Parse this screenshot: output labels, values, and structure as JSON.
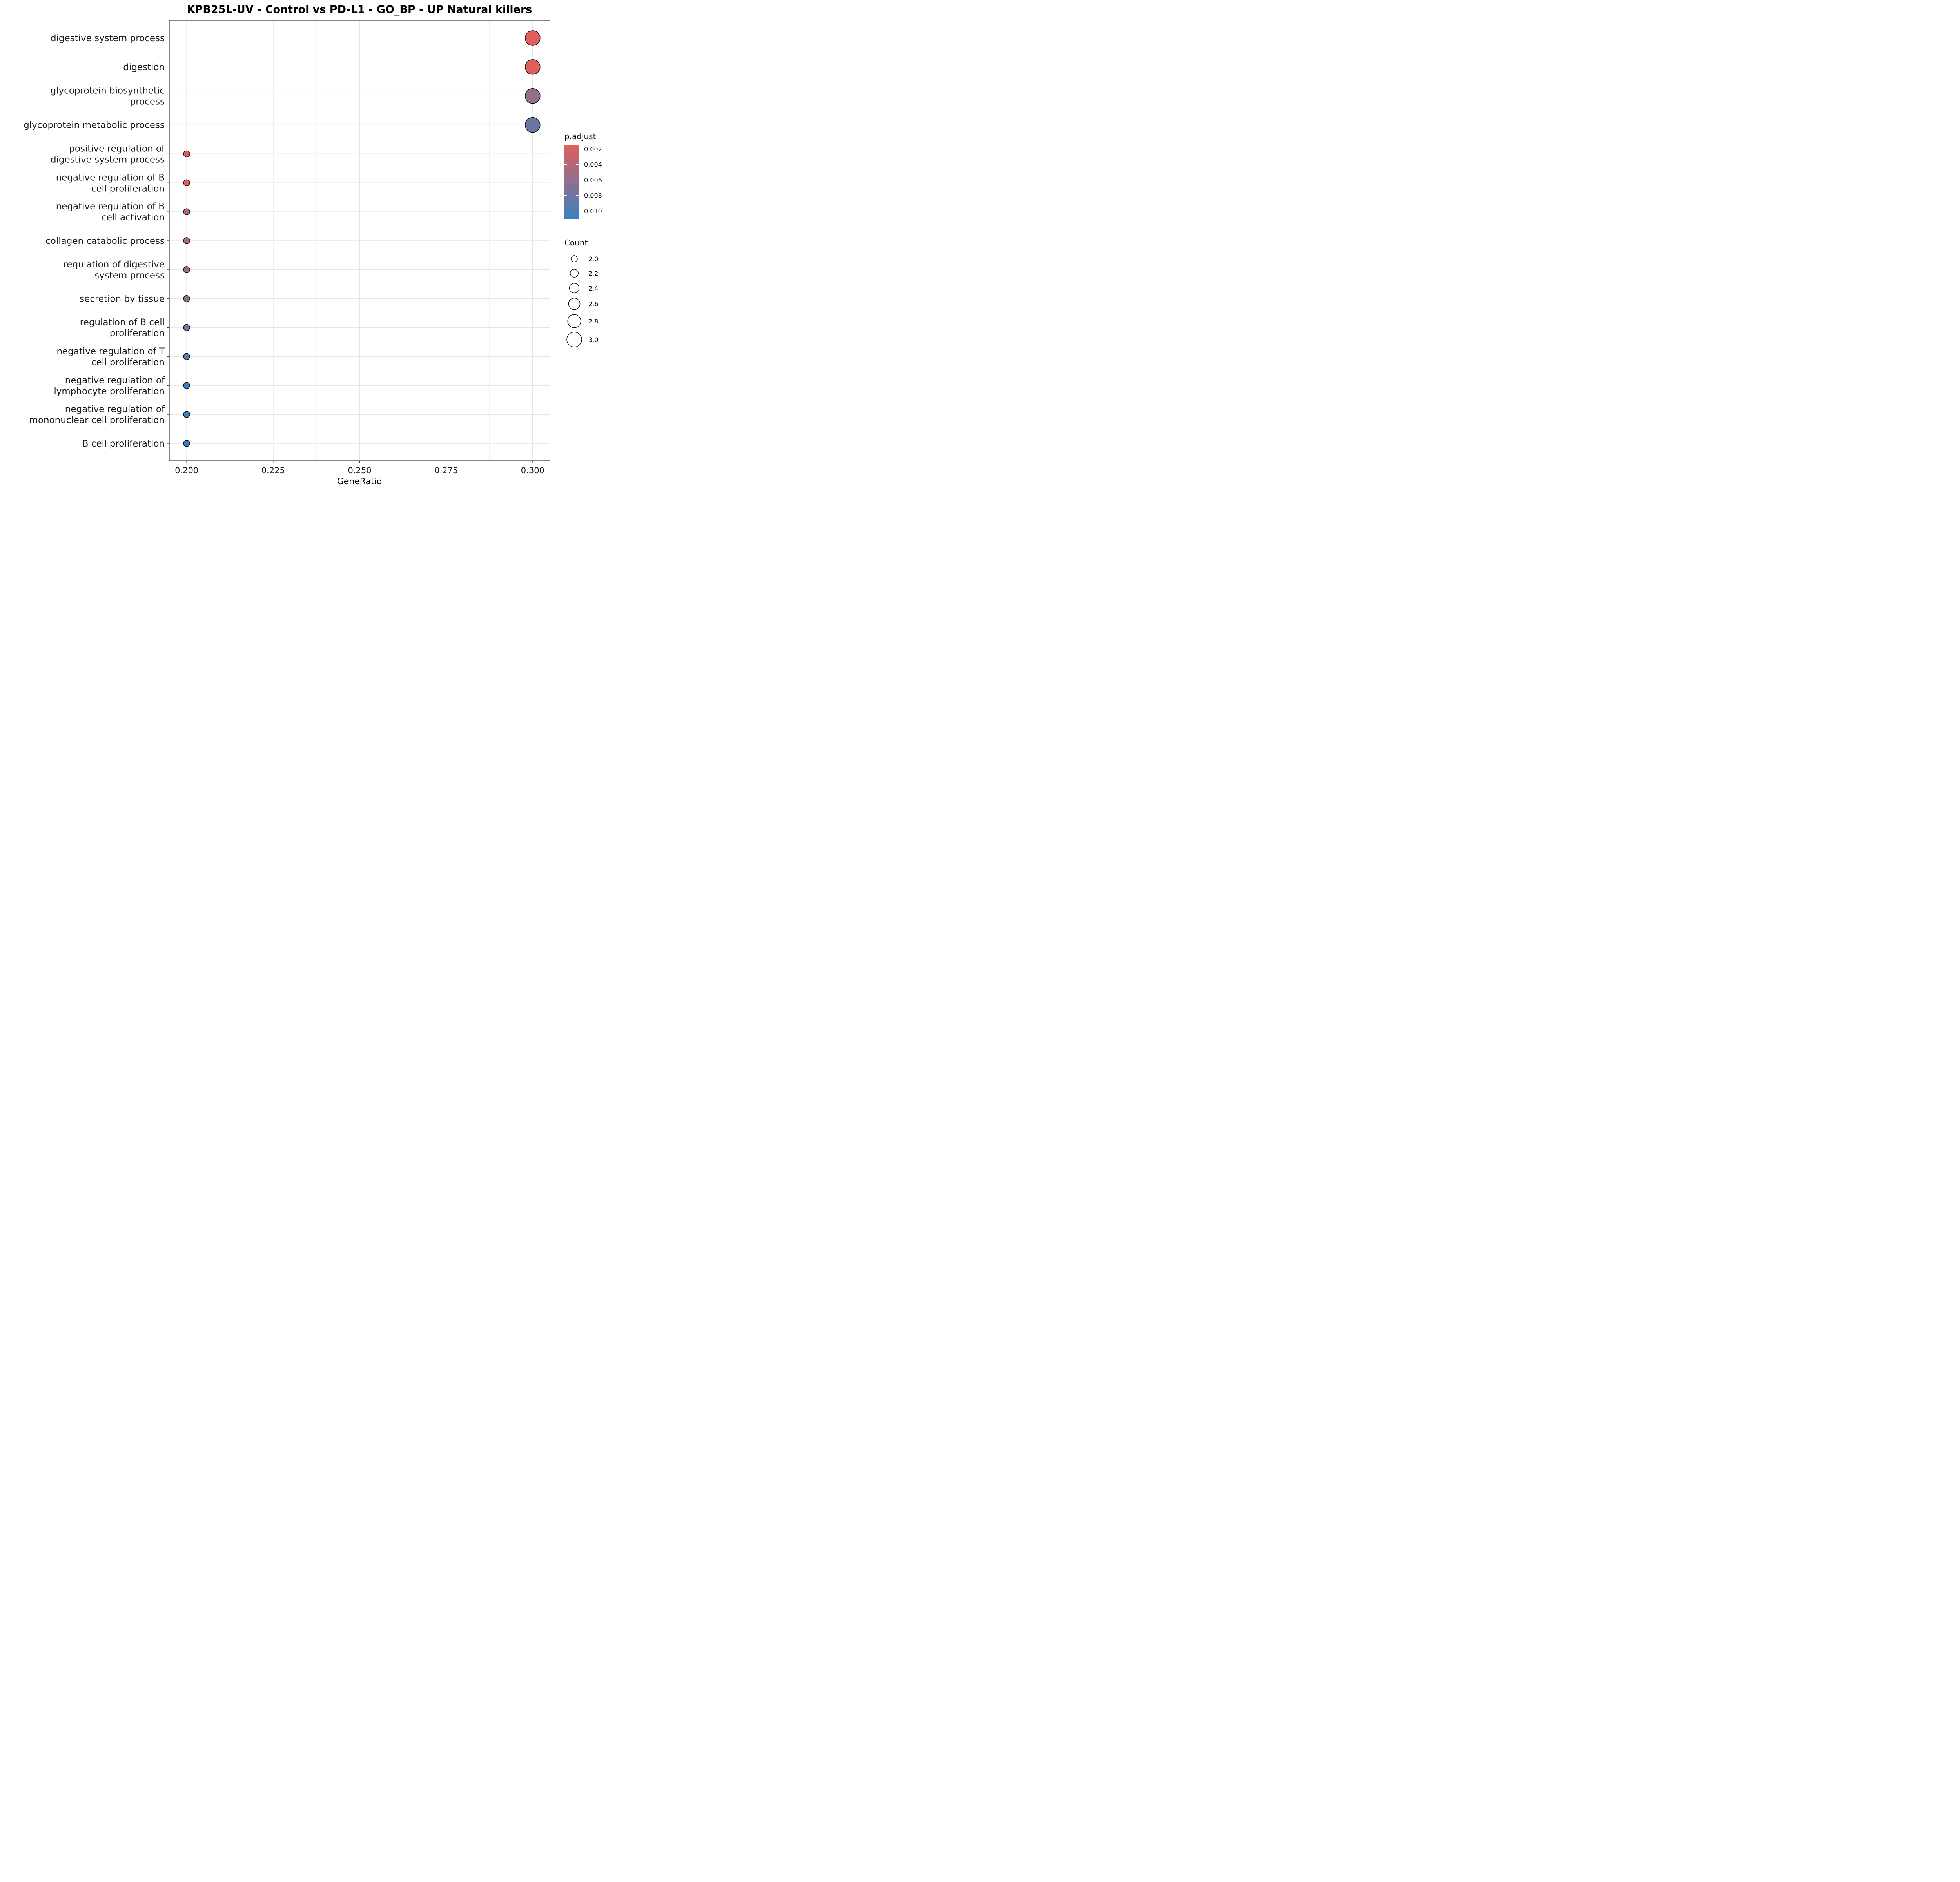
{
  "chart_data": {
    "type": "scatter",
    "title": "KPB25L-UV - Control vs PD-L1 - GO_BP - UP Natural killers",
    "xlabel": "GeneRatio",
    "ylabel": "",
    "xlim": [
      0.195,
      0.305
    ],
    "x_ticks": [
      "0.200",
      "0.225",
      "0.250",
      "0.275",
      "0.300"
    ],
    "grid": true,
    "categories": [
      "digestive system process",
      "digestion",
      "glycoprotein biosynthetic\nprocess",
      "glycoprotein metabolic process",
      "positive regulation of\ndigestive system process",
      "negative regulation of B\ncell proliferation",
      "negative regulation of B\ncell activation",
      "collagen catabolic process",
      "regulation of digestive\nsystem process",
      "secretion by tissue",
      "regulation of B cell\nproliferation",
      "negative regulation of T\ncell proliferation",
      "negative regulation of\nlymphocyte proliferation",
      "negative regulation of\nmononuclear cell proliferation",
      "B cell proliferation"
    ],
    "points": [
      {
        "x": 0.3,
        "count": 3,
        "p_adjust": 0.0015
      },
      {
        "x": 0.3,
        "count": 3,
        "p_adjust": 0.0016
      },
      {
        "x": 0.3,
        "count": 3,
        "p_adjust": 0.0058
      },
      {
        "x": 0.3,
        "count": 3,
        "p_adjust": 0.0082
      },
      {
        "x": 0.2,
        "count": 2,
        "p_adjust": 0.0015
      },
      {
        "x": 0.2,
        "count": 2,
        "p_adjust": 0.0016
      },
      {
        "x": 0.2,
        "count": 2,
        "p_adjust": 0.004
      },
      {
        "x": 0.2,
        "count": 2,
        "p_adjust": 0.0042
      },
      {
        "x": 0.2,
        "count": 2,
        "p_adjust": 0.0055
      },
      {
        "x": 0.2,
        "count": 2,
        "p_adjust": 0.0058
      },
      {
        "x": 0.2,
        "count": 2,
        "p_adjust": 0.008
      },
      {
        "x": 0.2,
        "count": 2,
        "p_adjust": 0.0092
      },
      {
        "x": 0.2,
        "count": 2,
        "p_adjust": 0.011
      },
      {
        "x": 0.2,
        "count": 2,
        "p_adjust": 0.011
      },
      {
        "x": 0.2,
        "count": 2,
        "p_adjust": 0.011
      }
    ],
    "color_legend": {
      "title": "p.adjust",
      "range": [
        0.0015,
        0.011
      ],
      "ticks": [
        0.002,
        0.004,
        0.006,
        0.008,
        0.01
      ],
      "tick_labels": [
        "0.002",
        "0.004",
        "0.006",
        "0.008",
        "0.010"
      ],
      "low_color": "#e05f5c",
      "high_color": "#3a80c0"
    },
    "size_legend": {
      "title": "Count",
      "values": [
        2.0,
        2.2,
        2.4,
        2.6,
        2.8,
        3.0
      ],
      "labels": [
        "2.0",
        "2.2",
        "2.4",
        "2.6",
        "2.8",
        "3.0"
      ]
    },
    "legend_position": "right"
  }
}
